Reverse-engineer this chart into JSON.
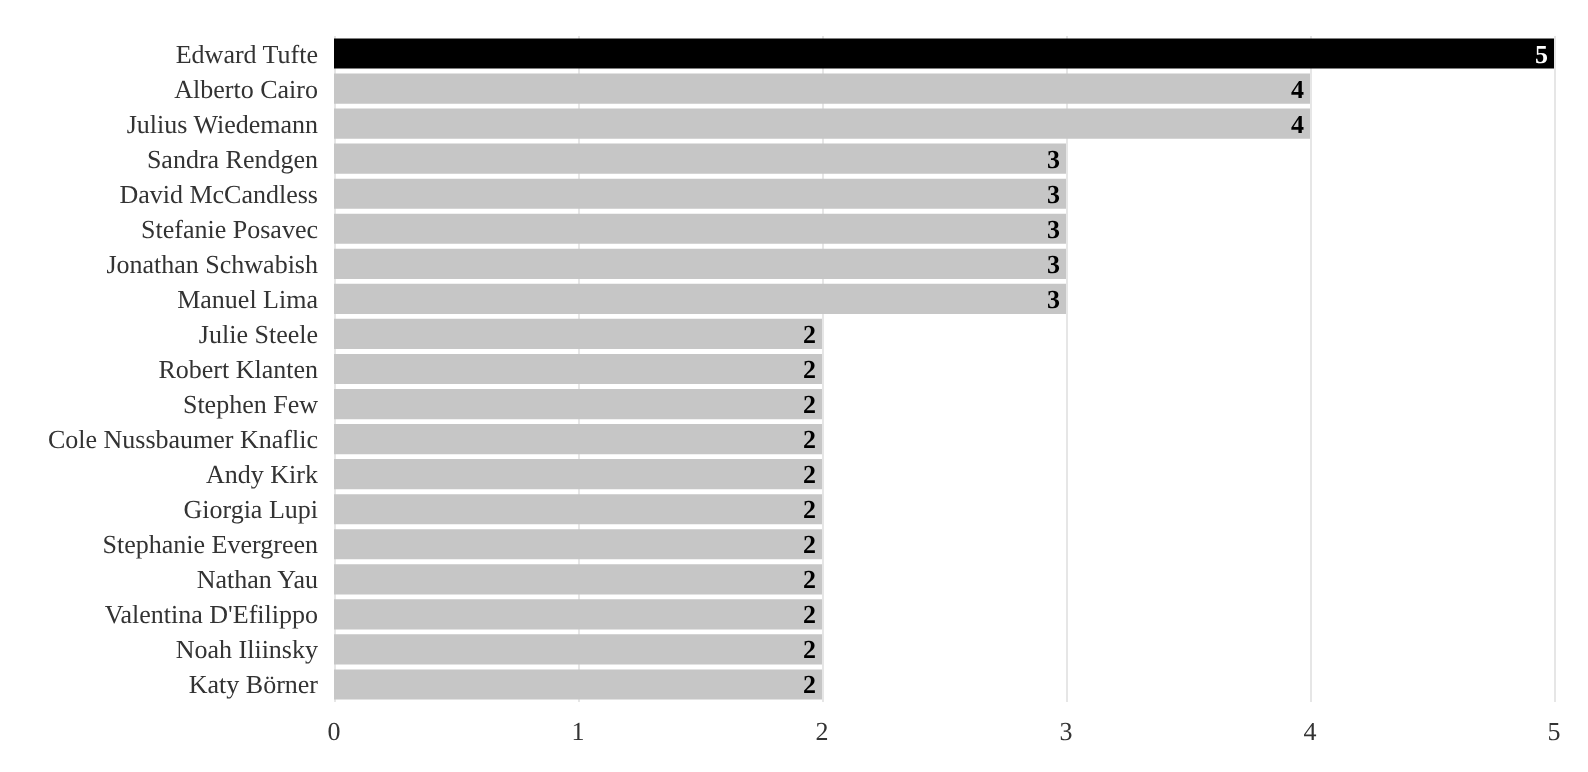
{
  "chart_data": {
    "type": "bar",
    "orientation": "horizontal",
    "categories": [
      "Edward Tufte",
      "Alberto Cairo",
      "Julius Wiedemann",
      "Sandra Rendgen",
      "David McCandless",
      "Stefanie Posavec",
      "Jonathan Schwabish",
      "Manuel Lima",
      "Julie Steele",
      "Robert Klanten",
      "Stephen Few",
      "Cole Nussbaumer Knaflic",
      "Andy Kirk",
      "Giorgia Lupi",
      "Stephanie Evergreen",
      "Nathan Yau",
      "Valentina D'Efilippo",
      "Noah Iliinsky",
      "Katy Börner"
    ],
    "values": [
      5,
      4,
      4,
      3,
      3,
      3,
      3,
      3,
      2,
      2,
      2,
      2,
      2,
      2,
      2,
      2,
      2,
      2,
      2
    ],
    "colors": [
      "#000000",
      "#c6c6c6",
      "#c6c6c6",
      "#c6c6c6",
      "#c6c6c6",
      "#c6c6c6",
      "#c6c6c6",
      "#c6c6c6",
      "#c6c6c6",
      "#c6c6c6",
      "#c6c6c6",
      "#c6c6c6",
      "#c6c6c6",
      "#c6c6c6",
      "#c6c6c6",
      "#c6c6c6",
      "#c6c6c6",
      "#c6c6c6",
      "#c6c6c6"
    ],
    "xlim": [
      0,
      5
    ],
    "xticks": [
      0,
      1,
      2,
      3,
      4,
      5
    ],
    "grid": "x",
    "data_labels": true
  }
}
